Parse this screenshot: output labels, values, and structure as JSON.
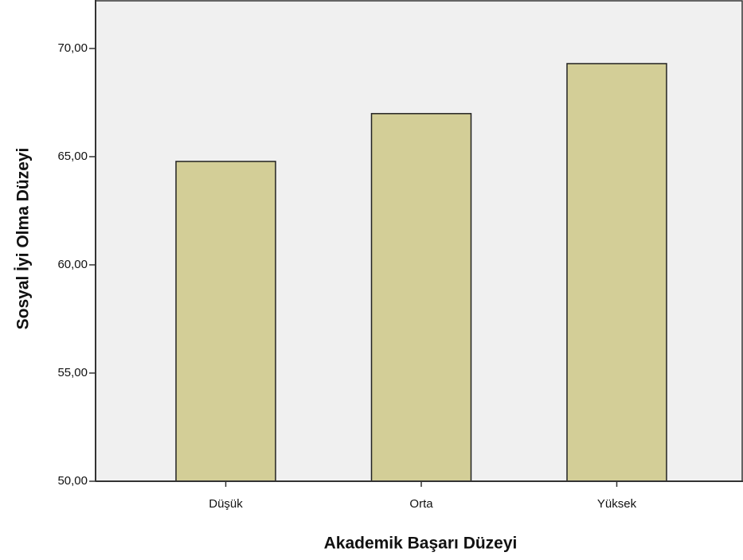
{
  "chart_data": {
    "type": "bar",
    "categories": [
      "Düşük",
      "Orta",
      "Yüksek"
    ],
    "values": [
      64.78,
      66.99,
      69.3
    ],
    "color": "#d3ce97",
    "x_label": "Akademik Başarı Düzeyi",
    "y_label": "Sosyal İyi Olma Düzeyi",
    "ylim": [
      50,
      72.24
    ],
    "yticks": [
      {
        "value": 50,
        "label": "50,00"
      },
      {
        "value": 55,
        "label": "55,00"
      },
      {
        "value": 60,
        "label": "60,00"
      },
      {
        "value": 65,
        "label": "65,00"
      },
      {
        "value": 70,
        "label": "70,00"
      }
    ],
    "grid": false
  }
}
